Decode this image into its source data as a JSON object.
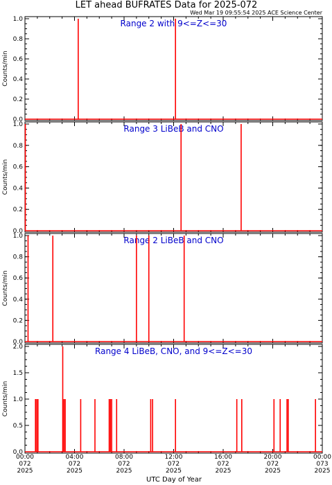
{
  "title": "LET ahead BUFRATES Data for 2025-072",
  "timestamp": "Wed Mar 19 09:55:54 2025 ACE Science Center",
  "xlabel": "UTC Day of Year",
  "colors": {
    "data": "#ff0000",
    "annotation": "#0000cc",
    "axis": "#000000"
  },
  "chart_data": [
    {
      "type": "line",
      "title": "Range 2 with 9<=Z<=30",
      "ylabel": "Counts/min",
      "ylim": [
        0,
        1.0
      ],
      "yticks": [
        "0.0",
        "0.2",
        "0.4",
        "0.6",
        "0.8",
        "1.0"
      ],
      "xlim": [
        "2025-072 00:00",
        "2025-073 00:00"
      ],
      "series": [
        {
          "x_hours": [
            4.3,
            12.15
          ],
          "values": [
            1,
            1
          ]
        }
      ]
    },
    {
      "type": "line",
      "title": "Range 3 LiBeB and CNO",
      "ylabel": "Counts/min",
      "ylim": [
        0,
        1.0
      ],
      "yticks": [
        "0.0",
        "0.2",
        "0.4",
        "0.6",
        "0.8",
        "1.0"
      ],
      "xlim": [
        "2025-072 00:00",
        "2025-073 00:00"
      ],
      "series": [
        {
          "x_hours": [
            0.03,
            12.6,
            17.45
          ],
          "values": [
            1,
            1,
            1
          ]
        }
      ]
    },
    {
      "type": "line",
      "title": "Range 2 LiBeB and CNO",
      "ylabel": "Counts/min",
      "ylim": [
        0,
        1.0
      ],
      "yticks": [
        "0.0",
        "0.2",
        "0.4",
        "0.6",
        "0.8",
        "1.0"
      ],
      "xlim": [
        "2025-072 00:00",
        "2025-073 00:00"
      ],
      "series": [
        {
          "x_hours": [
            0.25,
            2.25,
            9.0,
            10.0,
            12.85
          ],
          "values": [
            1,
            1,
            1,
            1,
            1
          ]
        }
      ]
    },
    {
      "type": "line",
      "title": "Range 4 LiBeB, CNO, and 9<=Z<=30",
      "ylabel": "Counts/min",
      "ylim": [
        0,
        2.0
      ],
      "yticks": [
        "0.0",
        "0.5",
        "1.0",
        "1.5",
        "2.0"
      ],
      "xlim": [
        "2025-072 00:00",
        "2025-073 00:00"
      ],
      "series": [
        {
          "x_hours": [
            0.85,
            0.95,
            1.05,
            3.05,
            3.15,
            3.25,
            4.5,
            5.65,
            6.8,
            6.9,
            7.0,
            7.4,
            10.15,
            10.3,
            12.15,
            17.1,
            17.5,
            20.1,
            20.6,
            21.15,
            21.25,
            23.45
          ],
          "values": [
            1,
            1,
            1,
            2,
            1,
            1,
            1,
            1,
            1,
            1,
            1,
            1,
            1,
            1,
            1,
            1,
            1,
            1,
            1,
            1,
            1,
            1
          ]
        }
      ]
    }
  ],
  "x_tick_labels": [
    {
      "time": "00:00",
      "doy": "072",
      "year": "2025"
    },
    {
      "time": "04:00",
      "doy": "072",
      "year": "2025"
    },
    {
      "time": "08:00",
      "doy": "072",
      "year": "2025"
    },
    {
      "time": "12:00",
      "doy": "072",
      "year": "2025"
    },
    {
      "time": "16:00",
      "doy": "072",
      "year": "2025"
    },
    {
      "time": "20:00",
      "doy": "072",
      "year": "2025"
    },
    {
      "time": "00:00",
      "doy": "073",
      "year": "2025"
    }
  ]
}
